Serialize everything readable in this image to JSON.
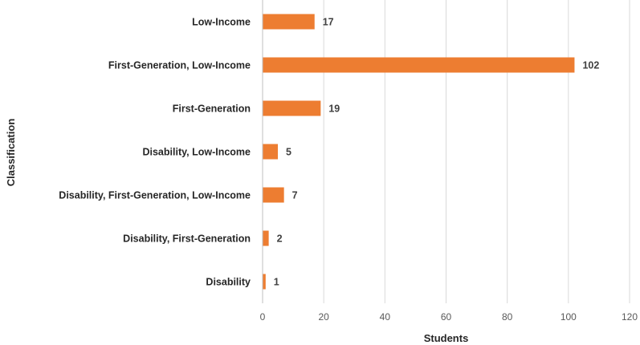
{
  "chart_data": {
    "type": "bar",
    "orientation": "horizontal",
    "categories": [
      "Low-Income",
      "First-Generation, Low-Income",
      "First-Generation",
      "Disability, Low-Income",
      "Disability, First-Generation, Low-Income",
      "Disability, First-Generation",
      "Disability"
    ],
    "values": [
      17,
      102,
      19,
      5,
      7,
      2,
      1
    ],
    "xlabel": "Students",
    "ylabel": "Classification",
    "xlim": [
      0,
      120
    ],
    "xticks": [
      0,
      20,
      40,
      60,
      80,
      100,
      120
    ],
    "grid": "vertical",
    "legend": "none",
    "bar_color": "#ED7D31"
  }
}
